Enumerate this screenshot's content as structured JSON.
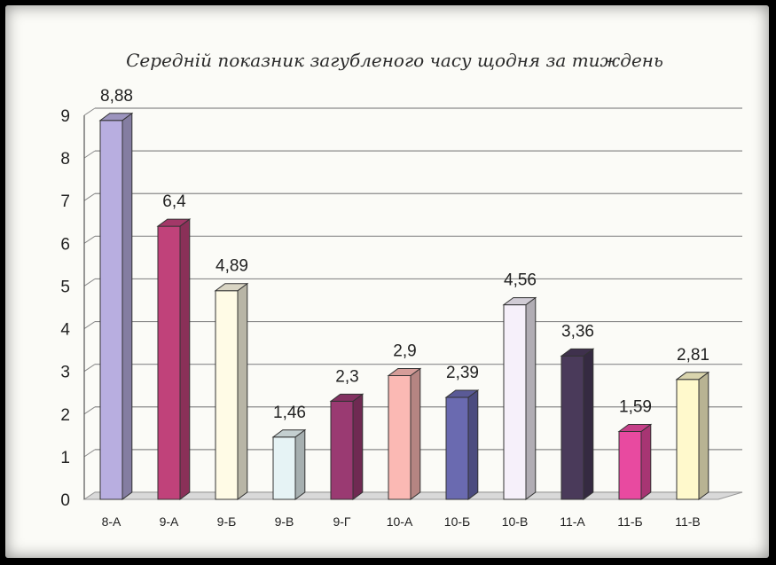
{
  "chart_data": {
    "type": "bar",
    "title": "Середній показник загубленого часу щодня за тиждень",
    "categories": [
      "8-А",
      "9-А",
      "9-Б",
      "9-В",
      "9-Г",
      "10-А",
      "10-Б",
      "10-В",
      "11-А",
      "11-Б",
      "11-В"
    ],
    "values": [
      8.88,
      6.4,
      4.89,
      1.46,
      2.3,
      2.9,
      2.39,
      4.56,
      3.36,
      1.59,
      2.81
    ],
    "value_labels": [
      "8,88",
      "6,4",
      "4,89",
      "1,46",
      "2,3",
      "2,9",
      "2,39",
      "4,56",
      "3,36",
      "1,59",
      "2,81"
    ],
    "ylim": [
      0,
      9
    ],
    "yticks": [
      "0",
      "1",
      "2",
      "3",
      "4",
      "5",
      "6",
      "7",
      "8",
      "9"
    ],
    "grid": true,
    "legend": "none",
    "bar_colors": [
      "#b8aee0",
      "#c0427a",
      "#fffbe6",
      "#e6f3f5",
      "#9a3a72",
      "#fbb9b4",
      "#6a6ab0",
      "#f6f0fa",
      "#4a3a5a",
      "#e84aa0",
      "#fff9cc"
    ]
  }
}
